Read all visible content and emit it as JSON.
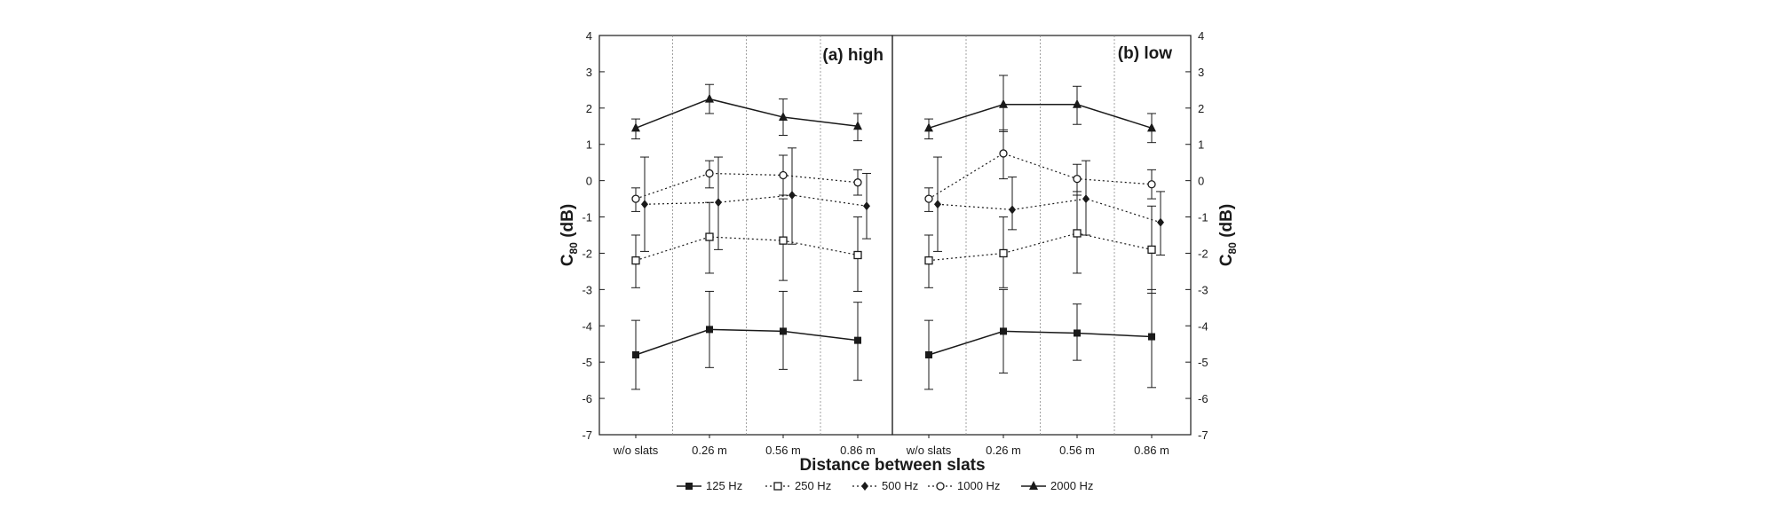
{
  "chart_data": {
    "type": "line",
    "xlabel": "Distance between slats",
    "ylabel_left": "C",
    "ylabel_right": "C",
    "ylabel_sub": "80",
    "ylabel_unit": " (dB)",
    "categories": [
      "w/o slats",
      "0.26 m",
      "0.56 m",
      "0.86 m"
    ],
    "ylim": [
      -7,
      4
    ],
    "yticks": [
      4,
      3,
      2,
      1,
      0,
      -1,
      -2,
      -3,
      -4,
      -5,
      -6,
      -7
    ],
    "legend_position": "bottom-center",
    "colors": {
      "ink": "#1a1a1a",
      "grid": "#8a8a8a"
    },
    "panels": [
      {
        "label": "(a) high",
        "series": [
          {
            "name": "125 Hz",
            "marker": "filled-square",
            "line": "solid",
            "values": [
              -4.8,
              -4.1,
              -4.15,
              -4.4
            ],
            "err_low": [
              -5.75,
              -5.15,
              -5.2,
              -5.5
            ],
            "err_high": [
              -3.85,
              -3.05,
              -3.05,
              -3.35
            ]
          },
          {
            "name": "250 Hz",
            "marker": "open-square",
            "line": "dotted",
            "values": [
              -2.2,
              -1.55,
              -1.65,
              -2.05
            ],
            "err_low": [
              -2.95,
              -2.55,
              -2.75,
              -3.05
            ],
            "err_high": [
              -1.5,
              -0.6,
              -0.5,
              -1.0
            ]
          },
          {
            "name": "500 Hz",
            "marker": "filled-diamond",
            "line": "dotted",
            "values": [
              -0.65,
              -0.6,
              -0.4,
              -0.7
            ],
            "err_low": [
              -1.95,
              -1.9,
              -1.75,
              -1.6
            ],
            "err_high": [
              0.65,
              0.65,
              0.9,
              0.2
            ]
          },
          {
            "name": "1000 Hz",
            "marker": "open-circle",
            "line": "dotted",
            "values": [
              -0.5,
              0.2,
              0.15,
              -0.05
            ],
            "err_low": [
              -0.85,
              -0.2,
              -0.4,
              -0.4
            ],
            "err_high": [
              -0.2,
              0.55,
              0.7,
              0.3
            ]
          },
          {
            "name": "2000 Hz",
            "marker": "filled-triangle",
            "line": "solid",
            "values": [
              1.45,
              2.25,
              1.75,
              1.5
            ],
            "err_low": [
              1.15,
              1.85,
              1.25,
              1.1
            ],
            "err_high": [
              1.7,
              2.65,
              2.25,
              1.85
            ]
          }
        ]
      },
      {
        "label": "(b) low",
        "series": [
          {
            "name": "125 Hz",
            "marker": "filled-square",
            "line": "solid",
            "values": [
              -4.8,
              -4.15,
              -4.2,
              -4.3
            ],
            "err_low": [
              -5.75,
              -5.3,
              -4.95,
              -5.7
            ],
            "err_high": [
              -3.85,
              -3.0,
              -3.4,
              -3.0
            ]
          },
          {
            "name": "250 Hz",
            "marker": "open-square",
            "line": "dotted",
            "values": [
              -2.2,
              -2.0,
              -1.45,
              -1.9
            ],
            "err_low": [
              -2.95,
              -2.95,
              -2.55,
              -3.1
            ],
            "err_high": [
              -1.5,
              -1.0,
              -0.3,
              -0.7
            ]
          },
          {
            "name": "500 Hz",
            "marker": "filled-diamond",
            "line": "dotted",
            "values": [
              -0.65,
              -0.8,
              -0.5,
              -1.15
            ],
            "err_low": [
              -1.95,
              -1.35,
              -1.5,
              -2.05
            ],
            "err_high": [
              0.65,
              0.1,
              0.55,
              -0.3
            ]
          },
          {
            "name": "1000 Hz",
            "marker": "open-circle",
            "line": "dotted",
            "values": [
              -0.5,
              0.75,
              0.05,
              -0.1
            ],
            "err_low": [
              -0.85,
              0.05,
              -0.4,
              -0.5
            ],
            "err_high": [
              -0.2,
              1.4,
              0.45,
              0.3
            ]
          },
          {
            "name": "2000 Hz",
            "marker": "filled-triangle",
            "line": "solid",
            "values": [
              1.45,
              2.1,
              2.1,
              1.45
            ],
            "err_low": [
              1.15,
              1.35,
              1.55,
              1.05
            ],
            "err_high": [
              1.7,
              2.9,
              2.6,
              1.85
            ]
          }
        ]
      }
    ]
  }
}
